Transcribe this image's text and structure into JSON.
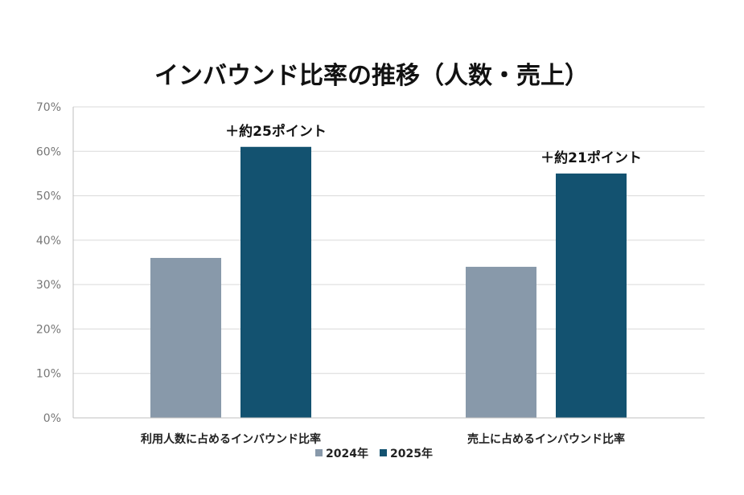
{
  "chart_data": {
    "type": "bar",
    "title": "インバウンド比率の推移（人数・売上）",
    "categories": [
      "利用人数に占めるインバウンド比率",
      "売上に占めるインバウンド比率"
    ],
    "series": [
      {
        "name": "2024年",
        "values": [
          36,
          34
        ],
        "color": "#8899aa"
      },
      {
        "name": "2025年",
        "values": [
          61,
          55
        ],
        "color": "#135270"
      }
    ],
    "annotations": [
      "＋約25ポイント",
      "＋約21ポイント"
    ],
    "yticks": [
      "0%",
      "10%",
      "20%",
      "30%",
      "40%",
      "50%",
      "60%",
      "70%"
    ],
    "ylim": [
      0,
      70
    ],
    "xlabel": "",
    "ylabel": "",
    "legend_position": "bottom"
  }
}
